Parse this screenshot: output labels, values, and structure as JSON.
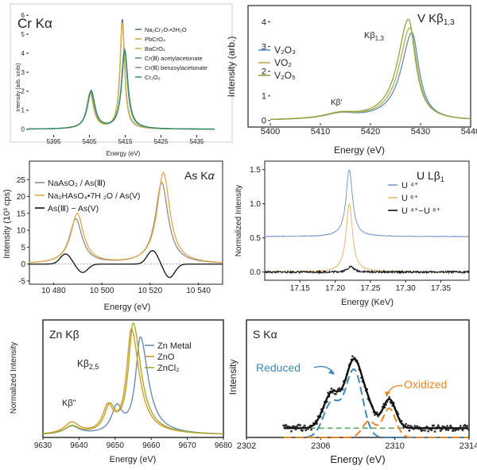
{
  "chart_data": [
    {
      "type": "line",
      "title": "Cr Kα",
      "xlabel": "Energy (eV)",
      "ylabel": "Intensity (arb. units)",
      "xlim": [
        5388,
        5440
      ],
      "ylim": [
        -0.3,
        6.3
      ],
      "xticks": [
        5395,
        5405,
        5415,
        5425,
        5435
      ],
      "yticks": [
        0,
        1,
        2,
        3,
        4,
        5,
        6
      ],
      "legend": [
        "Na₂Cr₂O₇•2H₂O",
        "PbCrO₄",
        "BaCrO₄",
        "Cr(Ⅲ) acetylacetonate",
        "Cr(Ⅲ) benzoylacetonate",
        "Cr₂O₃"
      ],
      "colors": [
        "#3d6fa3",
        "#c5a829",
        "#d6b341",
        "#4e8f7e",
        "#7d8f9f",
        "#2f8f66"
      ],
      "series": [
        {
          "name": "Na₂Cr₂O₇•2H₂O",
          "peaks": [
            [
              5405.2,
              1.85,
              1.2
            ],
            [
              5414.2,
              5.75,
              0.75
            ]
          ]
        },
        {
          "name": "PbCrO₄",
          "peaks": [
            [
              5405.2,
              1.9,
              1.15
            ],
            [
              5414.2,
              5.6,
              0.8
            ]
          ]
        },
        {
          "name": "BaCrO₄",
          "peaks": [
            [
              5405.2,
              1.9,
              1.15
            ],
            [
              5414.2,
              5.55,
              0.8
            ]
          ]
        },
        {
          "name": "Cr(Ⅲ) acetylacetonate",
          "peaks": [
            [
              5405.4,
              1.95,
              1.25
            ],
            [
              5414.8,
              4.2,
              1.0
            ]
          ]
        },
        {
          "name": "Cr(Ⅲ) benzoylacetonate",
          "peaks": [
            [
              5405.4,
              1.95,
              1.25
            ],
            [
              5414.8,
              4.15,
              1.0
            ]
          ]
        },
        {
          "name": "Cr₂O₃",
          "peaks": [
            [
              5405.5,
              2.0,
              1.25
            ],
            [
              5414.9,
              4.1,
              1.05
            ]
          ]
        }
      ]
    },
    {
      "type": "line",
      "title": "V Kβ1,3",
      "xlabel": "Energy (eV)",
      "ylabel": "Intensity (arb.)",
      "xlim": [
        5400,
        5440
      ],
      "ylim": [
        -0.1,
        4.5
      ],
      "xticks": [
        5400,
        5410,
        5420,
        5430,
        5440
      ],
      "yticks": [
        0,
        1,
        2,
        3,
        4
      ],
      "annotations": [
        "Kβ1,3",
        "Kβ'"
      ],
      "legend": [
        "V₂O₃",
        "VO₂",
        "V₂O₅"
      ],
      "colors": [
        "#5b8fc4",
        "#c0a94a",
        "#8aa83c"
      ],
      "series": [
        {
          "name": "V₂O₃",
          "peak": [
            5428.3,
            3.55
          ]
        },
        {
          "name": "VO₂",
          "peak": [
            5427.9,
            3.75
          ]
        },
        {
          "name": "V₂O₅",
          "peak": [
            5427.6,
            4.1
          ]
        }
      ]
    },
    {
      "type": "line",
      "title": "As Kα",
      "xlabel": "Energy (eV)",
      "ylabel": "Intensity (10³ cps)",
      "xlim": [
        10470,
        10550
      ],
      "ylim": [
        -5.5,
        30
      ],
      "xticks": [
        10480,
        10500,
        10520,
        10540
      ],
      "xticklabels": [
        "10 480",
        "10 500",
        "10 520",
        "10 540"
      ],
      "yticks": [
        -5,
        0,
        5,
        10,
        15,
        20,
        25
      ],
      "legend": [
        "NaAsO₂ / As(Ⅲ)",
        "Na₂HAsO₄•7H ₂O / As(V)",
        "As(Ⅲ) − As(V)"
      ],
      "colors": [
        "#8e8e8e",
        "#e3a84a",
        "#111111"
      ],
      "series": [
        {
          "name": "NaAsO₂ / As(Ⅲ)",
          "peaks": [
            [
              10489.2,
              13.2
            ],
            [
              10524.8,
              24.0
            ]
          ]
        },
        {
          "name": "Na₂HAsO₄•7H ₂O / As(V)",
          "peaks": [
            [
              10489.8,
              14.8
            ],
            [
              10525.5,
              27.0
            ]
          ]
        },
        {
          "name": "As(Ⅲ) − As(V)",
          "extrema": [
            [
              10485,
              3.0
            ],
            [
              10492,
              -2.5
            ],
            [
              10521,
              4.0
            ],
            [
              10528,
              -4.0
            ]
          ]
        }
      ]
    },
    {
      "type": "line",
      "title": "U Lβ1",
      "xlabel": "Energy (KeV)",
      "ylabel": "Normalized Intensity",
      "xlim": [
        17.1,
        17.39
      ],
      "ylim": [
        -0.12,
        1.6
      ],
      "xticks": [
        17.15,
        17.2,
        17.25,
        17.3,
        17.35
      ],
      "xticklabels": [
        "17.15",
        "17.20",
        "17.25",
        "17.30",
        "17.35"
      ],
      "yticks": [
        0,
        0.5,
        1.0,
        1.5
      ],
      "yticklabels": [
        "0.0",
        "0.5",
        "1.0",
        "1.5"
      ],
      "legend": [
        "U ⁴⁺",
        "U ⁶⁺",
        "U ⁴⁺−U ⁶⁺"
      ],
      "colors": [
        "#7b9cc9",
        "#e7b86a",
        "#111111"
      ],
      "series": [
        {
          "name": "U ⁴⁺",
          "baseline": 0.52,
          "peak": [
            17.22,
            1.5
          ]
        },
        {
          "name": "U ⁶⁺",
          "baseline": 0.0,
          "peak": [
            17.22,
            1.0
          ]
        },
        {
          "name": "U ⁴⁺−U ⁶⁺",
          "baseline": 0.0,
          "peak": [
            17.222,
            0.08
          ]
        }
      ]
    },
    {
      "type": "line",
      "title": "Zn Kβ",
      "xlabel": "Energy (eV)",
      "ylabel": "Normalized Intensity",
      "xlim": [
        9630,
        9680
      ],
      "ylim": [
        0,
        1.0
      ],
      "xticks": [
        9630,
        9640,
        9650,
        9660,
        9670,
        9680
      ],
      "annotations": [
        "Kβ2,5",
        "Kβ''"
      ],
      "legend": [
        "Zn Metal",
        "ZnO",
        "ZnCl₂"
      ],
      "colors": [
        "#6b8db5",
        "#d99a2b",
        "#a7ab30"
      ],
      "series": [
        {
          "name": "Zn Metal",
          "peak": [
            9657,
            0.83
          ]
        },
        {
          "name": "ZnO",
          "peak": [
            9654.5,
            0.9
          ]
        },
        {
          "name": "ZnCl₂",
          "peak": [
            9655,
            0.95
          ]
        }
      ]
    },
    {
      "type": "scatter",
      "title": "S Kα",
      "xlabel": "Energy (eV)",
      "ylabel": "Intensity",
      "xlim": [
        2302,
        2314
      ],
      "ylim": [
        0,
        1.0
      ],
      "xticks": [
        2302,
        2306,
        2310,
        2314
      ],
      "annotations": [
        "Reduced",
        "Oxidized"
      ],
      "colors": {
        "data": "#333333",
        "fit": "#111111",
        "reduced": "#3d8ab8",
        "oxidized": "#e8862a",
        "background": "#5cab5c"
      },
      "components": [
        {
          "name": "Reduced",
          "peaks": [
            [
              2307.8,
              0.58
            ],
            [
              2306.6,
              0.3
            ]
          ]
        },
        {
          "name": "Oxidized",
          "peaks": [
            [
              2309.7,
              0.25
            ],
            [
              2308.6,
              0.14
            ]
          ]
        },
        {
          "name": "background",
          "level": 0.08
        }
      ]
    }
  ]
}
